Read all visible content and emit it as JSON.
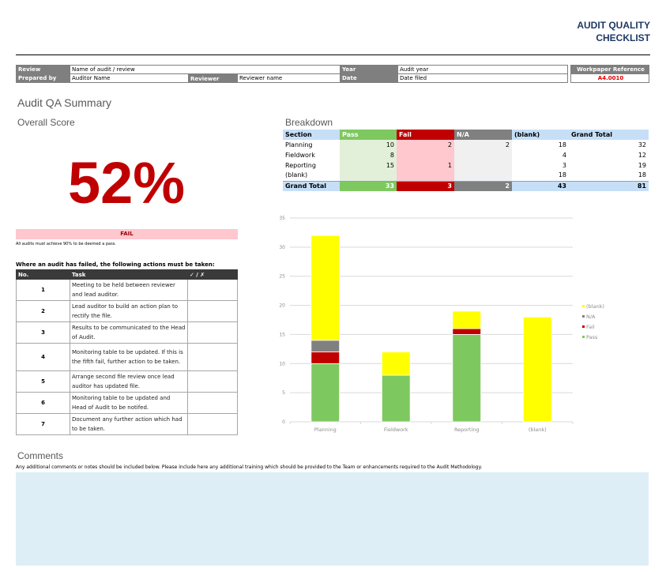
{
  "title": {
    "line1": "AUDIT QUALITY",
    "line2": "CHECKLIST"
  },
  "header": {
    "review_label": "Review",
    "review_value": "Name of audit / review",
    "year_label": "Year",
    "year_value": "Audit year",
    "prepared_label": "Prepared by",
    "prepared_value": "Auditor Name",
    "reviewer_label": "Reviewer",
    "reviewer_value": "Reviewer name",
    "date_label": "Date",
    "date_value": "Date filed",
    "workpaper_label": "Workpaper Reference",
    "workpaper_value": "A4.0010"
  },
  "summary": {
    "title": "Audit QA Summary",
    "score_label": "Overall Score",
    "score": "52%",
    "result": "FAIL",
    "note": "All audits must achieve 90% to be deemed a pass."
  },
  "actions": {
    "heading": "Where an audit has failed, the following actions must be taken:",
    "columns": [
      "No.",
      "Task",
      "✓ / ✗"
    ],
    "rows": [
      {
        "no": "1",
        "task": "Meeting to be held between reviewer and lead auditor."
      },
      {
        "no": "2",
        "task": "Lead auditor to build an action plan to rectify the file."
      },
      {
        "no": "3",
        "task": "Results to be communicated to the Head of Audit."
      },
      {
        "no": "4",
        "task": "Monitoring table to be updated. If this is the fifth fail, further action to be taken."
      },
      {
        "no": "5",
        "task": "Arrange second file review once lead auditor has updated file."
      },
      {
        "no": "6",
        "task": "Monitoring table to be updated and Head of Audit to be notifed."
      },
      {
        "no": "7",
        "task": "Document any further action which had to be taken."
      }
    ]
  },
  "breakdown": {
    "title": "Breakdown",
    "columns": [
      "Section",
      "Pass",
      "Fail",
      "N/A",
      "(blank)",
      "Grand Total"
    ],
    "rows": [
      [
        "Planning",
        "10",
        "2",
        "2",
        "18",
        "32"
      ],
      [
        "Fieldwork",
        "8",
        "",
        "",
        "4",
        "12"
      ],
      [
        "Reporting",
        "15",
        "1",
        "",
        "3",
        "19"
      ],
      [
        "(blank)",
        "",
        "",
        "",
        "18",
        "18"
      ]
    ],
    "total": [
      "Grand Total",
      "33",
      "3",
      "2",
      "43",
      "81"
    ]
  },
  "chart_data": {
    "type": "bar",
    "stacked": true,
    "categories": [
      "Planning",
      "Fieldwork",
      "Reporting",
      "(blank)"
    ],
    "series": [
      {
        "name": "Pass",
        "values": [
          10,
          8,
          15,
          0
        ],
        "color": "#7ec860"
      },
      {
        "name": "Fail",
        "values": [
          2,
          0,
          1,
          0
        ],
        "color": "#c00000"
      },
      {
        "name": "N/A",
        "values": [
          2,
          0,
          0,
          0
        ],
        "color": "#808080"
      },
      {
        "name": "(blank)",
        "values": [
          18,
          4,
          3,
          18
        ],
        "color": "#ffff00"
      }
    ],
    "ylim": [
      0,
      35
    ],
    "yticks": [
      0,
      5,
      10,
      15,
      20,
      25,
      30,
      35
    ],
    "grid": true,
    "legend": "right"
  },
  "comments": {
    "title": "Comments",
    "instructions": "Any additional comments or notes should be included below. Please include here any additional training which should be provided to the Team or enhancements required to the Audit Methodology.",
    "value": ""
  }
}
